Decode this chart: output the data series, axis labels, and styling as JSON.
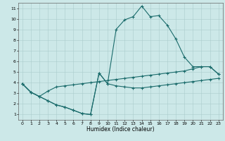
{
  "xlabel": "Humidex (Indice chaleur)",
  "xlim": [
    -0.5,
    23.5
  ],
  "ylim": [
    0.5,
    11.5
  ],
  "xticks": [
    0,
    1,
    2,
    3,
    4,
    5,
    6,
    7,
    8,
    9,
    10,
    11,
    12,
    13,
    14,
    15,
    16,
    17,
    18,
    19,
    20,
    21,
    22,
    23
  ],
  "yticks": [
    1,
    2,
    3,
    4,
    5,
    6,
    7,
    8,
    9,
    10,
    11
  ],
  "bg_color": "#cce8e8",
  "grid_color": "#aacccc",
  "line_color": "#1a6b6b",
  "line1_x": [
    0,
    1,
    2,
    3,
    4,
    5,
    6,
    7,
    8,
    9,
    10,
    11,
    12,
    13,
    14,
    15,
    16,
    17,
    18,
    19,
    20,
    21,
    22,
    23
  ],
  "line1_y": [
    3.9,
    3.1,
    2.7,
    2.3,
    1.9,
    1.7,
    1.4,
    1.1,
    1.0,
    4.9,
    3.9,
    9.0,
    9.9,
    10.2,
    11.2,
    10.2,
    10.3,
    9.4,
    8.1,
    6.4,
    5.5,
    5.5,
    5.5,
    4.8
  ],
  "line2_x": [
    0,
    1,
    2,
    3,
    4,
    5,
    6,
    7,
    8,
    9,
    10,
    11,
    12,
    13,
    14,
    15,
    16,
    17,
    18,
    19,
    20,
    21,
    22,
    23
  ],
  "line2_y": [
    3.9,
    3.1,
    2.7,
    3.2,
    3.6,
    3.7,
    3.8,
    3.9,
    4.0,
    4.1,
    4.2,
    4.3,
    4.4,
    4.5,
    4.6,
    4.7,
    4.8,
    4.9,
    5.0,
    5.1,
    5.3,
    5.5,
    5.5,
    4.8
  ],
  "line3_x": [
    0,
    1,
    2,
    3,
    4,
    5,
    6,
    7,
    8,
    9,
    10,
    11,
    12,
    13,
    14,
    15,
    16,
    17,
    18,
    19,
    20,
    21,
    22,
    23
  ],
  "line3_y": [
    3.9,
    3.1,
    2.7,
    2.3,
    1.9,
    1.7,
    1.4,
    1.1,
    1.0,
    4.9,
    3.9,
    3.7,
    3.6,
    3.5,
    3.5,
    3.6,
    3.7,
    3.8,
    3.9,
    4.0,
    4.1,
    4.2,
    4.3,
    4.4
  ]
}
